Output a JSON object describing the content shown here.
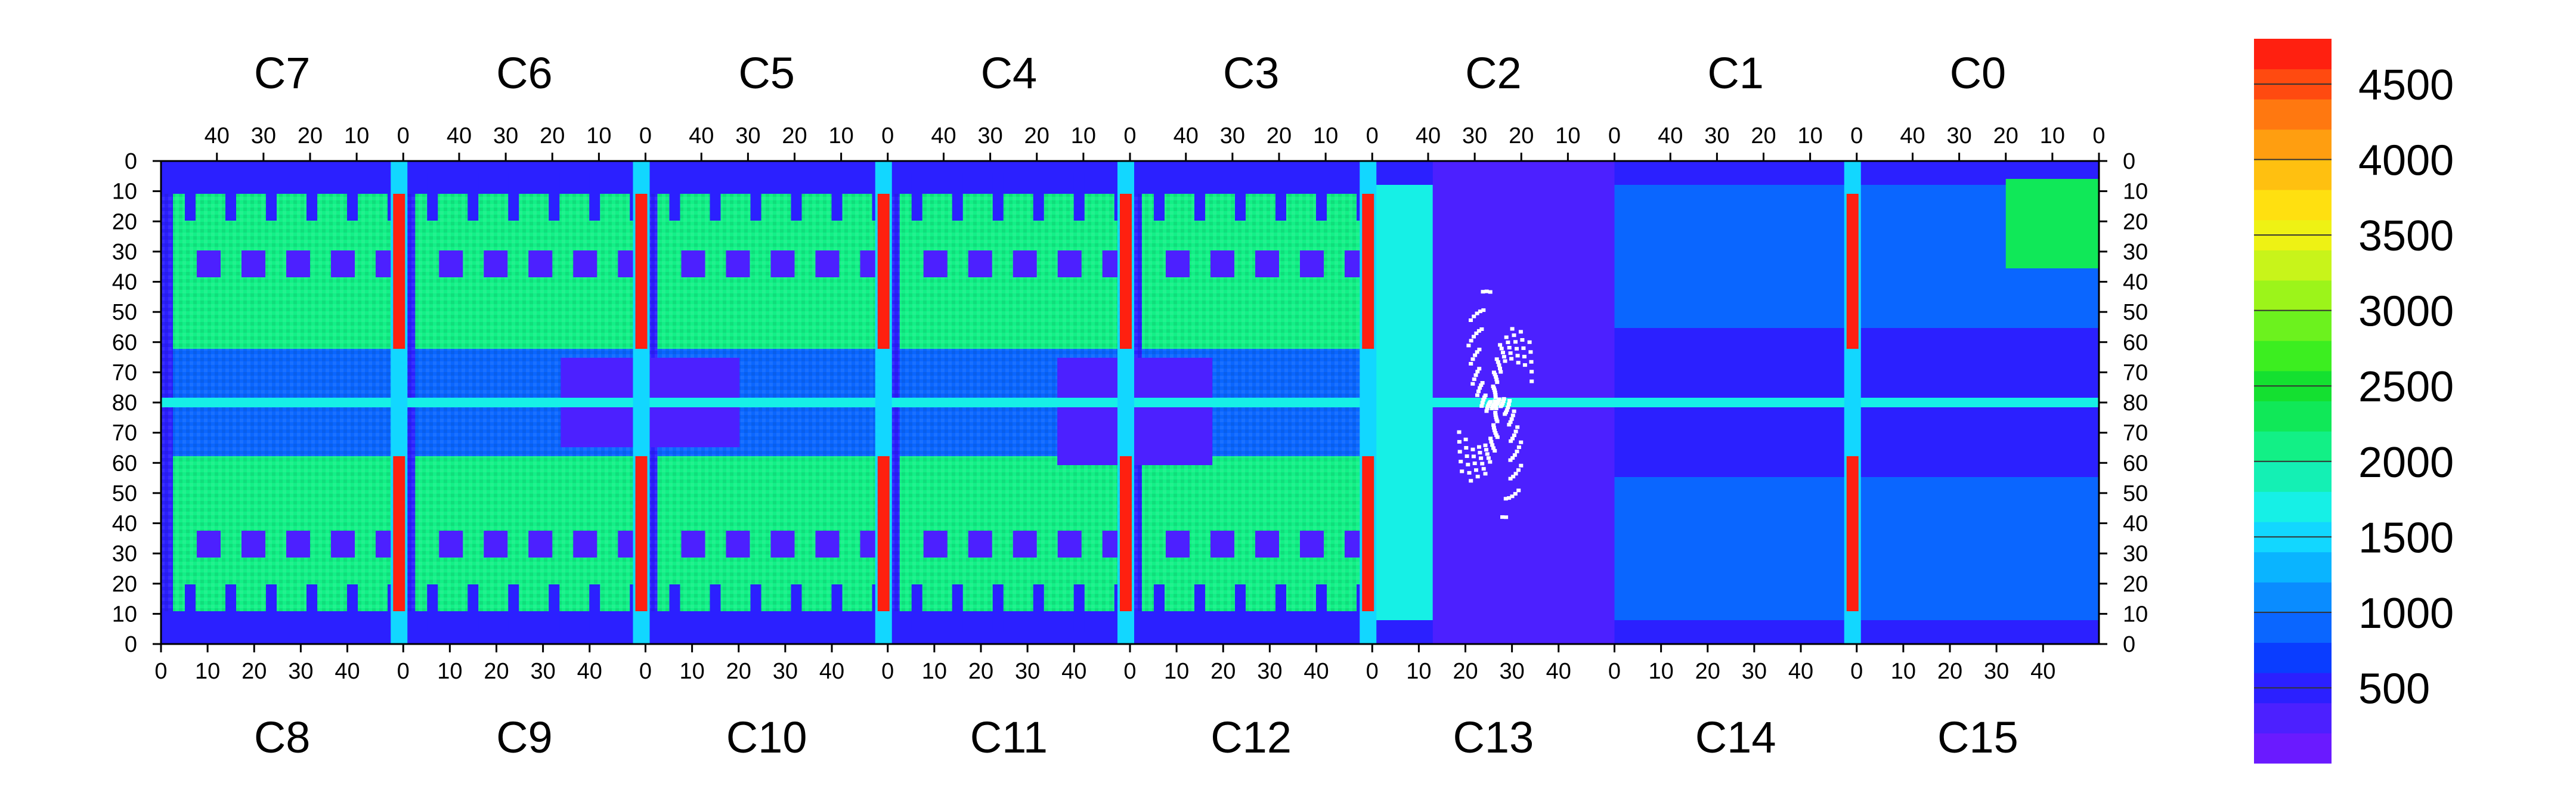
{
  "chart_data": {
    "type": "heatmap",
    "title": "",
    "xlabel": "",
    "ylabel": "",
    "top_chips": [
      "C7",
      "C6",
      "C5",
      "C4",
      "C3",
      "C2",
      "C1",
      "C0"
    ],
    "bottom_chips": [
      "C8",
      "C9",
      "C10",
      "C11",
      "C12",
      "C13",
      "C14",
      "C15"
    ],
    "top_ticks": [
      "40",
      "30",
      "20",
      "10",
      "0"
    ],
    "bottom_ticks": [
      "0",
      "10",
      "20",
      "30",
      "40"
    ],
    "y_ticks": [
      "0",
      "10",
      "20",
      "30",
      "40",
      "50",
      "60",
      "70",
      "80",
      "70",
      "60",
      "50",
      "40",
      "30",
      "20",
      "10",
      "0"
    ],
    "chip_columns": 52,
    "rows_per_half": 80,
    "zlim": [
      0,
      4800
    ],
    "colorbar_ticks": [
      500,
      1000,
      1500,
      2000,
      2500,
      3000,
      3500,
      4000,
      4500
    ],
    "colorbar_colors": [
      "#6a1aff",
      "#4c20ff",
      "#2b20ff",
      "#0a3dff",
      "#0a66ff",
      "#0a8cff",
      "#0ab4ff",
      "#12d7ff",
      "#16f0e6",
      "#14f0b4",
      "#12f086",
      "#10e858",
      "#14e030",
      "#3cee20",
      "#6cf21e",
      "#9cf41a",
      "#c8f41a",
      "#eef214",
      "#ffe010",
      "#ffc010",
      "#ff9e10",
      "#ff7810",
      "#ff4a10",
      "#ff2010"
    ],
    "regions": [
      {
        "chip": "C8",
        "level": "high 1800-2500 with low-value pad blocks"
      },
      {
        "chip": "C9",
        "level": "high 1800-2500 with low-value pad blocks"
      },
      {
        "chip": "C10",
        "level": "high 1800-2500 with low-value pad blocks"
      },
      {
        "chip": "C11",
        "level": "high 1800-2500 with low-value pad blocks"
      },
      {
        "chip": "C12",
        "level": "high 1800-2500 with low-value pad blocks"
      },
      {
        "chip": "C13",
        "level": "very low, ~300"
      },
      {
        "chip": "C14",
        "level": "low, ~400-700"
      },
      {
        "chip": "C15",
        "level": "low, ~400-700"
      }
    ],
    "hot_columns": [
      {
        "between": "C7/C6",
        "value": 4600
      },
      {
        "between": "C6/C5",
        "value": 4600
      },
      {
        "between": "C5/C4",
        "value": 4600
      },
      {
        "between": "C4/C3",
        "value": 4600
      },
      {
        "between": "C3/C2",
        "value": 4600
      },
      {
        "between": "C1/C0",
        "value": 4600
      }
    ]
  }
}
